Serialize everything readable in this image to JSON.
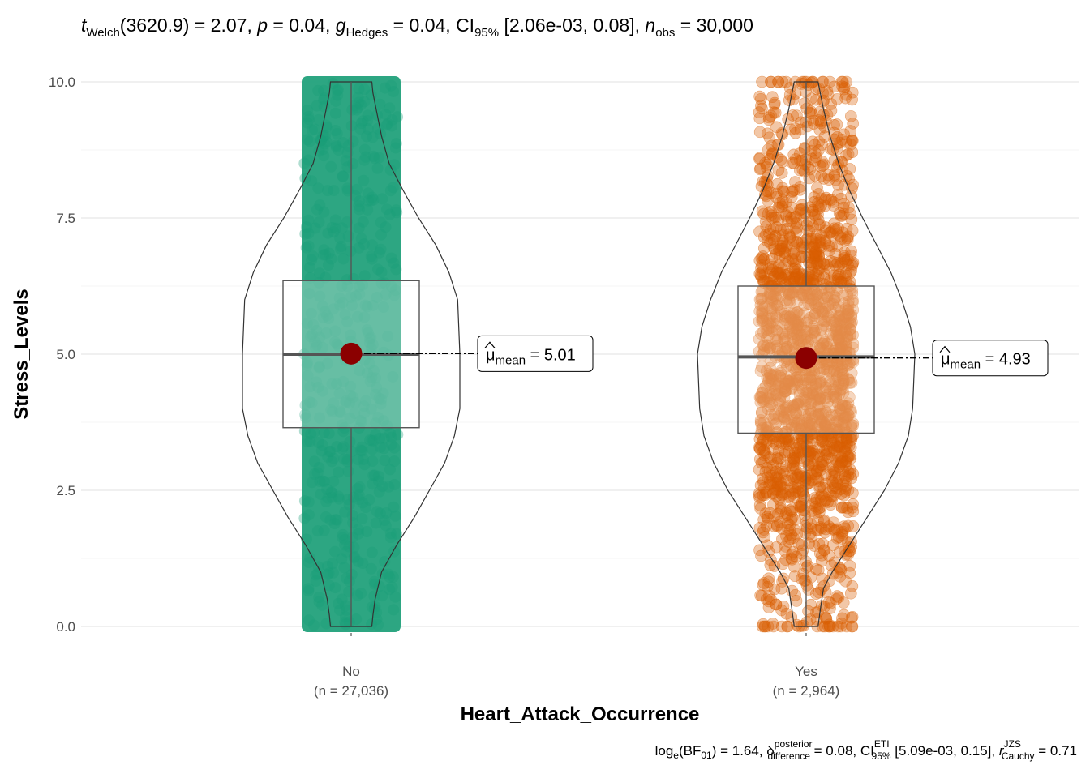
{
  "chart_data": {
    "type": "violin-box-jitter",
    "title": {
      "t_symbol": "t",
      "t_sub": "Welch",
      "df": "(3620.9)",
      "t_value": " = 2.07, ",
      "p_symbol": "p",
      "p_value": " = 0.04, ",
      "g_symbol": "g",
      "g_sub": "Hedges",
      "g_value": " = 0.04, ",
      "ci_label": "CI",
      "ci_sub": "95%",
      "ci_value": " [2.06e-03, 0.08], ",
      "n_symbol": "n",
      "n_sub": "obs",
      "n_value": " = 30,000"
    },
    "caption": {
      "bf_label": "log",
      "bf_sub": "e",
      "bf_open": "(BF",
      "bf_sub2": "01",
      "bf_value": ") = 1.64, ",
      "delta": "δ",
      "delta_sup": "posterior",
      "delta_sub": "difference",
      "delta_value": " = 0.08, ",
      "ci_label": "CI",
      "ci_sup": "ETI",
      "ci_sub": "95%",
      "ci_value": " [5.09e-03, 0.15], ",
      "r_symbol": "r",
      "r_sup": "JZS",
      "r_sub": "Cauchy",
      "r_value": " = 0.71"
    },
    "xlabel": "Heart_Attack_Occurrence",
    "ylabel": "Stress_Levels",
    "ylim": [
      0,
      10
    ],
    "yticks": [
      0,
      2.5,
      5,
      7.5,
      10
    ],
    "ytick_labels": [
      "0.0",
      "2.5",
      "5.0",
      "7.5",
      "10.0"
    ],
    "grid": true,
    "groups": [
      {
        "category": "No",
        "n_label": "(n = 27,036)",
        "color": "#1b9e77",
        "q1": 3.65,
        "median": 5.0,
        "q3": 6.35,
        "whisker_low": 0,
        "whisker_high": 10,
        "mean": 5.01,
        "mean_label_sym": "μ",
        "mean_label_sub": "mean",
        "mean_label_value": " = 5.01",
        "violin_profile": [
          [
            0,
            0.19
          ],
          [
            0.2,
            0.2
          ],
          [
            0.5,
            0.22
          ],
          [
            1,
            0.28
          ],
          [
            1.5,
            0.42
          ],
          [
            2,
            0.58
          ],
          [
            2.5,
            0.72
          ],
          [
            3,
            0.86
          ],
          [
            3.5,
            0.95
          ],
          [
            4,
            1.0
          ],
          [
            5,
            1.0
          ],
          [
            6,
            0.98
          ],
          [
            6.5,
            0.9
          ],
          [
            7,
            0.78
          ],
          [
            7.5,
            0.62
          ],
          [
            8,
            0.48
          ],
          [
            8.5,
            0.35
          ],
          [
            9,
            0.28
          ],
          [
            9.5,
            0.23
          ],
          [
            9.8,
            0.2
          ],
          [
            10,
            0.19
          ]
        ]
      },
      {
        "category": "Yes",
        "n_label": "(n = 2,964)",
        "color": "#d95f02",
        "q1": 3.55,
        "median": 4.95,
        "q3": 6.25,
        "whisker_low": 0,
        "whisker_high": 10,
        "mean": 4.93,
        "mean_label_sym": "μ",
        "mean_label_sub": "mean",
        "mean_label_value": " = 4.93",
        "violin_profile": [
          [
            0,
            0.11
          ],
          [
            0.3,
            0.13
          ],
          [
            0.7,
            0.16
          ],
          [
            1,
            0.24
          ],
          [
            1.5,
            0.4
          ],
          [
            2,
            0.56
          ],
          [
            2.5,
            0.72
          ],
          [
            3,
            0.85
          ],
          [
            3.5,
            0.94
          ],
          [
            4,
            0.98
          ],
          [
            5,
            1.0
          ],
          [
            5.5,
            0.96
          ],
          [
            6,
            0.88
          ],
          [
            6.5,
            0.78
          ],
          [
            7,
            0.65
          ],
          [
            7.5,
            0.52
          ],
          [
            8,
            0.4
          ],
          [
            8.5,
            0.3
          ],
          [
            9,
            0.22
          ],
          [
            9.5,
            0.16
          ],
          [
            10,
            0.11
          ]
        ]
      }
    ]
  }
}
